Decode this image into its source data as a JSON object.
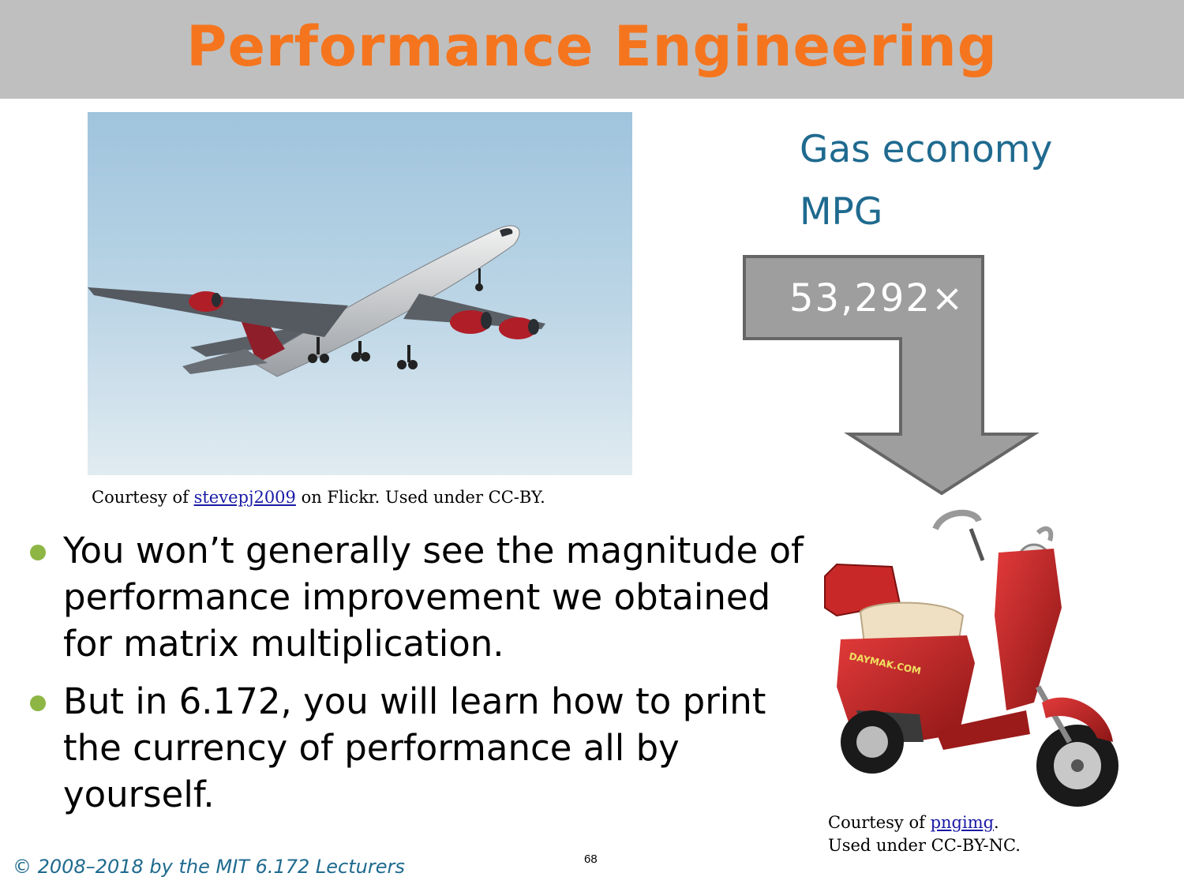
{
  "slide": {
    "title": "Performance Engineering",
    "gas_economy_label": "Gas economy",
    "mpg_label": "MPG",
    "factor": "53,292×",
    "bullets": [
      "You won’t generally see the magnitude of performance improvement we obtained for matrix multiplication.",
      "But in 6.172, you will learn how to print the currency of performance all by yourself."
    ],
    "airplane_caption": {
      "prefix": "Courtesy of ",
      "link": "stevepj2009",
      "suffix": " on Flickr. Used under CC-BY."
    },
    "scooter_caption": {
      "prefix": "Courtesy of ",
      "link": "pngimg",
      "suffix": ".",
      "line2": "Used under CC-BY-NC."
    },
    "scooter_brand": "DAYMAK.COM",
    "footer": "© 2008–2018 by the MIT 6.172 Lecturers",
    "page_number": "68"
  },
  "colors": {
    "title": "#f5751e",
    "title_bar": "#bfbfbf",
    "accent_blue": "#1f6a8f",
    "bullet": "#8db645",
    "arrow_fill": "#9e9e9e",
    "arrow_stroke": "#666666"
  }
}
